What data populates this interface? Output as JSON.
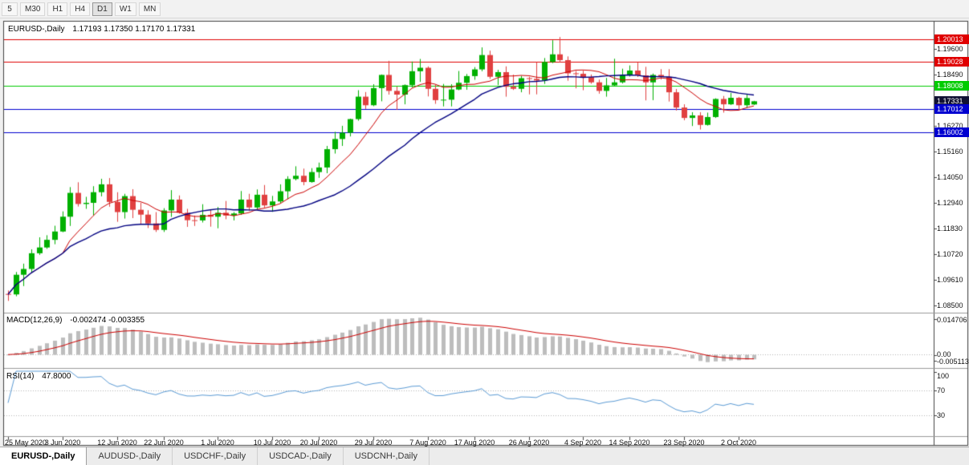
{
  "toolbar": {
    "timeframes": [
      {
        "label": "5",
        "active": false
      },
      {
        "label": "M30",
        "active": false
      },
      {
        "label": "H1",
        "active": false
      },
      {
        "label": "H4",
        "active": false
      },
      {
        "label": "D1",
        "active": true
      },
      {
        "label": "W1",
        "active": false
      },
      {
        "label": "MN",
        "active": false
      }
    ]
  },
  "main_chart": {
    "title": "EURUSD-,Daily",
    "ohlc_text": "1.17193 1.17350 1.17170 1.17331"
  },
  "price_axis": {
    "ticks": [
      {
        "label": "1.19600",
        "value": 1.196
      },
      {
        "label": "1.18490",
        "value": 1.1849
      },
      {
        "label": "1.16270",
        "value": 1.1627
      },
      {
        "label": "1.15160",
        "value": 1.1516
      },
      {
        "label": "1.14050",
        "value": 1.1405
      },
      {
        "label": "1.12940",
        "value": 1.1294
      },
      {
        "label": "1.11830",
        "value": 1.1183
      },
      {
        "label": "1.10720",
        "value": 1.1072
      },
      {
        "label": "1.09610",
        "value": 1.0961
      },
      {
        "label": "1.08500",
        "value": 1.085
      }
    ],
    "badges": [
      {
        "label": "1.20013",
        "value": 1.20013,
        "color": "#e00000",
        "line": true
      },
      {
        "label": "1.19028",
        "value": 1.19028,
        "color": "#e00000",
        "line": true
      },
      {
        "label": "1.18008",
        "value": 1.18008,
        "color": "#00cc00",
        "line": true
      },
      {
        "label": "1.17331",
        "value": 1.17331,
        "color": "#111133",
        "line": false
      },
      {
        "label": "1.17012",
        "value": 1.17012,
        "color": "#0000d0",
        "line": true
      },
      {
        "label": "1.16002",
        "value": 1.16002,
        "color": "#0000d0",
        "line": true
      }
    ]
  },
  "macd_panel": {
    "name": "MACD(12,26,9)",
    "values_text": "-0.002474 -0.003355",
    "axis_top": "0.014706",
    "axis_zero": "0.00",
    "axis_bottom": "-0.005113"
  },
  "rsi_panel": {
    "name": "RSI(14)",
    "value_text": "47.8000",
    "axis": [
      100,
      70,
      30
    ],
    "levels": [
      70,
      30
    ]
  },
  "time_axis": {
    "labels": [
      {
        "text": "25 May 2020",
        "index": 0
      },
      {
        "text": "3 Jun 2020",
        "index": 7
      },
      {
        "text": "12 Jun 2020",
        "index": 14
      },
      {
        "text": "22 Jun 2020",
        "index": 20
      },
      {
        "text": "1 Jul 2020",
        "index": 27
      },
      {
        "text": "10 Jul 2020",
        "index": 34
      },
      {
        "text": "20 Jul 2020",
        "index": 40
      },
      {
        "text": "29 Jul 2020",
        "index": 47
      },
      {
        "text": "7 Aug 2020",
        "index": 54
      },
      {
        "text": "17 Aug 2020",
        "index": 60
      },
      {
        "text": "26 Aug 2020",
        "index": 67
      },
      {
        "text": "4 Sep 2020",
        "index": 74
      },
      {
        "text": "14 Sep 2020",
        "index": 80
      },
      {
        "text": "23 Sep 2020",
        "index": 87
      },
      {
        "text": "2 Oct 2020",
        "index": 94
      }
    ]
  },
  "tabs": [
    {
      "label": "EURUSD-,Daily",
      "active": true
    },
    {
      "label": "AUDUSD-,Daily",
      "active": false
    },
    {
      "label": "USDCHF-,Daily",
      "active": false
    },
    {
      "label": "USDCAD-,Daily",
      "active": false
    },
    {
      "label": "USDCNH-,Daily",
      "active": false
    }
  ],
  "chart_data": {
    "type": "candlestick",
    "symbol": "EURUSD-",
    "period": "Daily",
    "ylim": [
      1.0826,
      1.2067
    ],
    "colors": {
      "up": "#00b000",
      "down": "#e04040",
      "ma_fast": "#cc0000",
      "ma_slow": "#000080",
      "macd_bar": "#bdbdbd",
      "macd_signal": "#cc0000",
      "rsi_line": "#5b9bd5",
      "level_dotted": "#b4b4b4"
    },
    "overlays": [
      {
        "type": "sma",
        "period": 8,
        "color": "#cc0000"
      },
      {
        "type": "sma",
        "period": 21,
        "color": "#000080"
      }
    ],
    "indicators": [
      {
        "type": "macd",
        "fast": 12,
        "slow": 26,
        "signal": 9
      },
      {
        "type": "rsi",
        "period": 14
      }
    ],
    "candles": [
      [
        "2020-05-25",
        1.09,
        1.0915,
        1.087,
        1.0898
      ],
      [
        "2020-05-26",
        1.0898,
        1.0995,
        1.089,
        1.0983
      ],
      [
        "2020-05-27",
        1.0983,
        1.1031,
        1.0934,
        1.1008
      ],
      [
        "2020-05-28",
        1.1008,
        1.1093,
        1.0992,
        1.1076
      ],
      [
        "2020-05-29",
        1.1076,
        1.1145,
        1.1069,
        1.1101
      ],
      [
        "2020-06-01",
        1.1101,
        1.1154,
        1.1095,
        1.1134
      ],
      [
        "2020-06-02",
        1.1134,
        1.1195,
        1.1115,
        1.117
      ],
      [
        "2020-06-03",
        1.117,
        1.1257,
        1.1167,
        1.1234
      ],
      [
        "2020-06-04",
        1.1234,
        1.1362,
        1.1194,
        1.1337
      ],
      [
        "2020-06-05",
        1.1337,
        1.1383,
        1.1278,
        1.1289
      ],
      [
        "2020-06-08",
        1.1289,
        1.132,
        1.1268,
        1.1294
      ],
      [
        "2020-06-09",
        1.1294,
        1.1366,
        1.124,
        1.134
      ],
      [
        "2020-06-10",
        1.134,
        1.1398,
        1.1322,
        1.1374
      ],
      [
        "2020-06-11",
        1.1374,
        1.1401,
        1.1277,
        1.1298
      ],
      [
        "2020-06-12",
        1.1298,
        1.134,
        1.1212,
        1.1254
      ],
      [
        "2020-06-15",
        1.1254,
        1.1333,
        1.1226,
        1.1323
      ],
      [
        "2020-06-16",
        1.1323,
        1.1353,
        1.1228,
        1.1264
      ],
      [
        "2020-06-17",
        1.1264,
        1.1294,
        1.1204,
        1.1243
      ],
      [
        "2020-06-18",
        1.1243,
        1.1262,
        1.1185,
        1.1205
      ],
      [
        "2020-06-19",
        1.1205,
        1.1254,
        1.1168,
        1.1177
      ],
      [
        "2020-06-22",
        1.1177,
        1.1271,
        1.1168,
        1.1261
      ],
      [
        "2020-06-23",
        1.1261,
        1.1349,
        1.1233,
        1.1308
      ],
      [
        "2020-06-24",
        1.1308,
        1.1326,
        1.1247,
        1.1251
      ],
      [
        "2020-06-25",
        1.1251,
        1.1268,
        1.119,
        1.1219
      ],
      [
        "2020-06-26",
        1.1219,
        1.1239,
        1.1194,
        1.1218
      ],
      [
        "2020-06-29",
        1.1218,
        1.1288,
        1.1209,
        1.1242
      ],
      [
        "2020-06-30",
        1.1242,
        1.1262,
        1.1191,
        1.1234
      ],
      [
        "2020-07-01",
        1.1234,
        1.1276,
        1.1184,
        1.1251
      ],
      [
        "2020-07-02",
        1.1251,
        1.1302,
        1.1223,
        1.1239
      ],
      [
        "2020-07-03",
        1.1239,
        1.1254,
        1.1218,
        1.1248
      ],
      [
        "2020-07-06",
        1.1248,
        1.1345,
        1.1242,
        1.1308
      ],
      [
        "2020-07-07",
        1.1308,
        1.1333,
        1.1259,
        1.1274
      ],
      [
        "2020-07-08",
        1.1274,
        1.1352,
        1.1266,
        1.1329
      ],
      [
        "2020-07-09",
        1.1329,
        1.1371,
        1.1274,
        1.1283
      ],
      [
        "2020-07-10",
        1.1283,
        1.1324,
        1.1255,
        1.13
      ],
      [
        "2020-07-13",
        1.13,
        1.1374,
        1.1292,
        1.1344
      ],
      [
        "2020-07-14",
        1.1344,
        1.1409,
        1.131,
        1.1397
      ],
      [
        "2020-07-15",
        1.1397,
        1.1452,
        1.1391,
        1.1411
      ],
      [
        "2020-07-16",
        1.1411,
        1.1442,
        1.137,
        1.1384
      ],
      [
        "2020-07-17",
        1.1384,
        1.1444,
        1.1381,
        1.1427
      ],
      [
        "2020-07-20",
        1.1427,
        1.1468,
        1.1402,
        1.1447
      ],
      [
        "2020-07-21",
        1.1447,
        1.154,
        1.1422,
        1.1526
      ],
      [
        "2020-07-22",
        1.1526,
        1.1601,
        1.1507,
        1.157
      ],
      [
        "2020-07-23",
        1.157,
        1.1627,
        1.154,
        1.1597
      ],
      [
        "2020-07-24",
        1.1597,
        1.1658,
        1.1581,
        1.1656
      ],
      [
        "2020-07-27",
        1.1656,
        1.1781,
        1.1649,
        1.1753
      ],
      [
        "2020-07-28",
        1.1753,
        1.1773,
        1.17,
        1.1716
      ],
      [
        "2020-07-29",
        1.1716,
        1.1807,
        1.1712,
        1.179
      ],
      [
        "2020-07-30",
        1.179,
        1.1849,
        1.1733,
        1.1847
      ],
      [
        "2020-07-31",
        1.1847,
        1.1908,
        1.1762,
        1.1778
      ],
      [
        "2020-08-03",
        1.1778,
        1.1797,
        1.1696,
        1.1762
      ],
      [
        "2020-08-04",
        1.1762,
        1.1806,
        1.172,
        1.1803
      ],
      [
        "2020-08-05",
        1.1803,
        1.1905,
        1.1793,
        1.1863
      ],
      [
        "2020-08-06",
        1.1863,
        1.1916,
        1.1817,
        1.1878
      ],
      [
        "2020-08-07",
        1.1878,
        1.1884,
        1.1754,
        1.1787
      ],
      [
        "2020-08-10",
        1.1787,
        1.1804,
        1.1722,
        1.1738
      ],
      [
        "2020-08-11",
        1.1738,
        1.1808,
        1.1711,
        1.174
      ],
      [
        "2020-08-12",
        1.174,
        1.1807,
        1.1711,
        1.1784
      ],
      [
        "2020-08-13",
        1.1784,
        1.1864,
        1.1781,
        1.1813
      ],
      [
        "2020-08-14",
        1.1813,
        1.1851,
        1.1783,
        1.1842
      ],
      [
        "2020-08-17",
        1.1842,
        1.1881,
        1.1826,
        1.1871
      ],
      [
        "2020-08-18",
        1.1871,
        1.1966,
        1.1863,
        1.1933
      ],
      [
        "2020-08-19",
        1.1933,
        1.1952,
        1.183,
        1.1839
      ],
      [
        "2020-08-20",
        1.1839,
        1.1869,
        1.1803,
        1.1859
      ],
      [
        "2020-08-21",
        1.1859,
        1.1884,
        1.1753,
        1.1796
      ],
      [
        "2020-08-24",
        1.1796,
        1.1848,
        1.1782,
        1.1787
      ],
      [
        "2020-08-25",
        1.1787,
        1.1843,
        1.1772,
        1.1833
      ],
      [
        "2020-08-26",
        1.1833,
        1.1839,
        1.1763,
        1.183
      ],
      [
        "2020-08-27",
        1.183,
        1.1902,
        1.1763,
        1.1823
      ],
      [
        "2020-08-28",
        1.1823,
        1.192,
        1.1808,
        1.1903
      ],
      [
        "2020-08-31",
        1.1903,
        1.1997,
        1.1898,
        1.1936
      ],
      [
        "2020-09-01",
        1.1936,
        1.2011,
        1.1901,
        1.1911
      ],
      [
        "2020-09-02",
        1.1911,
        1.1927,
        1.1822,
        1.1854
      ],
      [
        "2020-09-03",
        1.1854,
        1.1864,
        1.1789,
        1.1852
      ],
      [
        "2020-09-04",
        1.1852,
        1.1865,
        1.1781,
        1.1838
      ],
      [
        "2020-09-07",
        1.1838,
        1.1849,
        1.1809,
        1.1815
      ],
      [
        "2020-09-08",
        1.1815,
        1.1827,
        1.1766,
        1.1778
      ],
      [
        "2020-09-09",
        1.1778,
        1.1834,
        1.1753,
        1.1802
      ],
      [
        "2020-09-10",
        1.1802,
        1.1917,
        1.1799,
        1.1815
      ],
      [
        "2020-09-11",
        1.1815,
        1.1874,
        1.181,
        1.1845
      ],
      [
        "2020-09-14",
        1.1845,
        1.1888,
        1.184,
        1.1866
      ],
      [
        "2020-09-15",
        1.1866,
        1.19,
        1.1838,
        1.1845
      ],
      [
        "2020-09-16",
        1.1845,
        1.1882,
        1.1737,
        1.1815
      ],
      [
        "2020-09-17",
        1.1815,
        1.1853,
        1.1738,
        1.1847
      ],
      [
        "2020-09-18",
        1.1847,
        1.1872,
        1.1827,
        1.1839
      ],
      [
        "2020-09-21",
        1.1839,
        1.1872,
        1.1732,
        1.1772
      ],
      [
        "2020-09-22",
        1.1772,
        1.1786,
        1.1693,
        1.1706
      ],
      [
        "2020-09-23",
        1.1706,
        1.172,
        1.1651,
        1.1661
      ],
      [
        "2020-09-24",
        1.1661,
        1.1686,
        1.1626,
        1.1672
      ],
      [
        "2020-09-25",
        1.1672,
        1.1686,
        1.1611,
        1.1631
      ],
      [
        "2020-09-28",
        1.1631,
        1.1684,
        1.1628,
        1.1665
      ],
      [
        "2020-09-29",
        1.1665,
        1.1746,
        1.1661,
        1.1743
      ],
      [
        "2020-09-30",
        1.1743,
        1.1756,
        1.1684,
        1.172
      ],
      [
        "2020-10-01",
        1.172,
        1.1769,
        1.1717,
        1.1748
      ],
      [
        "2020-10-02",
        1.1748,
        1.1752,
        1.1695,
        1.1716
      ],
      [
        "2020-10-05",
        1.1716,
        1.1763,
        1.1705,
        1.1747
      ],
      [
        "2020-10-06",
        1.17193,
        1.1735,
        1.1717,
        1.17331
      ]
    ]
  }
}
